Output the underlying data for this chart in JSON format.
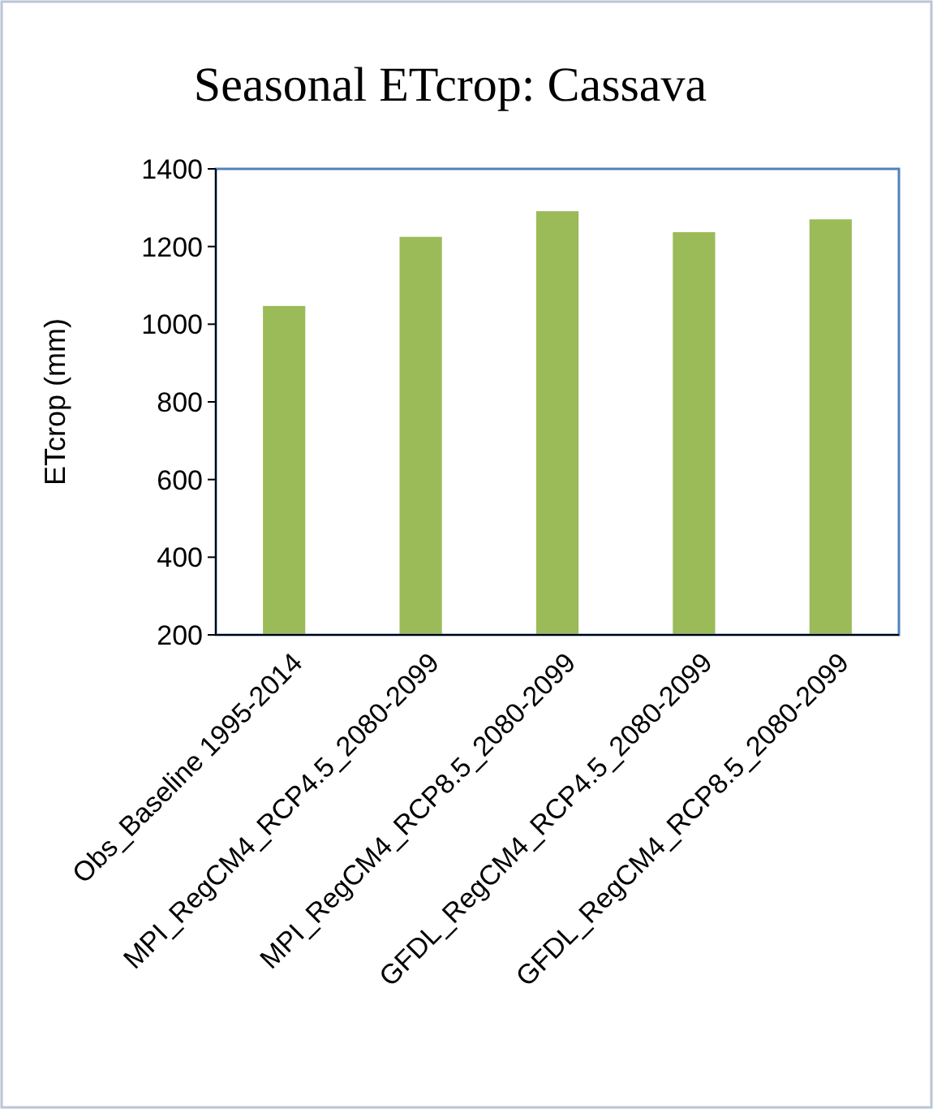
{
  "chart_data": {
    "type": "bar",
    "title": "Seasonal ETcrop: Cassava",
    "ylabel": "ETcrop (mm)",
    "categories": [
      "Obs_Baseline 1995-2014",
      "MPI_RegCM4_RCP4.5_2080-2099",
      "MPI_RegCM4_RCP8.5_2080-2099",
      "GFDL_RegCM4_RCP4.5_2080-2099",
      "GFDL_RegCM4_RCP8.5_2080-2099"
    ],
    "values": [
      1047,
      1225,
      1291,
      1237,
      1270
    ],
    "color": "#9bbb59",
    "ylim": [
      200,
      1400
    ],
    "yticks": [
      200,
      400,
      600,
      800,
      1000,
      1200,
      1400
    ],
    "grid": false
  }
}
